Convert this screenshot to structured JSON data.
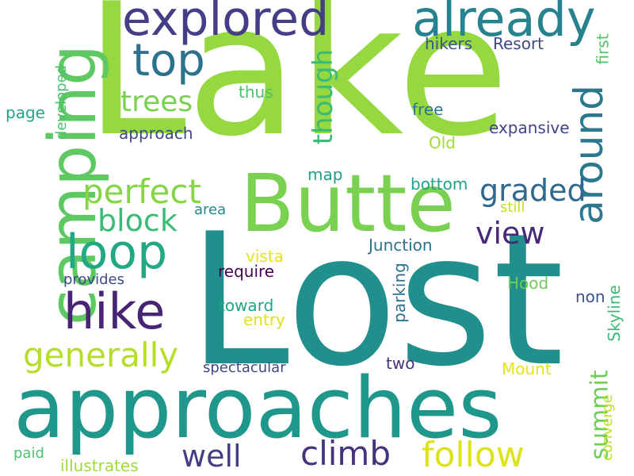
{
  "word_cloud": {
    "words": [
      {
        "id": "lake",
        "text": "Lake",
        "color": "#95d840"
      },
      {
        "id": "lost",
        "text": "Lost",
        "color": "#21908c"
      },
      {
        "id": "approaches",
        "text": "approaches",
        "color": "#1f978b"
      },
      {
        "id": "butte",
        "text": "Butte",
        "color": "#7ad151"
      },
      {
        "id": "camping",
        "text": "camping",
        "color": "#5ec962"
      },
      {
        "id": "explored",
        "text": "explored",
        "color": "#433e85"
      },
      {
        "id": "already",
        "text": "already",
        "color": "#26828e"
      },
      {
        "id": "top",
        "text": "top",
        "color": "#2c728e"
      },
      {
        "id": "around",
        "text": "around",
        "color": "#2a788e"
      },
      {
        "id": "loop",
        "text": "loop",
        "color": "#22a884"
      },
      {
        "id": "hike",
        "text": "hike",
        "color": "#482475"
      },
      {
        "id": "perfect",
        "text": "perfect",
        "color": "#86d549"
      },
      {
        "id": "trees",
        "text": "trees",
        "color": "#7ad151"
      },
      {
        "id": "though",
        "text": "though",
        "color": "#3bbb75"
      },
      {
        "id": "graded",
        "text": "graded",
        "color": "#31688e"
      },
      {
        "id": "view",
        "text": "view",
        "color": "#482878"
      },
      {
        "id": "block",
        "text": "block",
        "color": "#3bbb75"
      },
      {
        "id": "generally",
        "text": "generally",
        "color": "#b5de2b"
      },
      {
        "id": "well",
        "text": "well",
        "color": "#433e85"
      },
      {
        "id": "climb",
        "text": "climb",
        "color": "#46337e"
      },
      {
        "id": "follow",
        "text": "follow",
        "color": "#dde318"
      },
      {
        "id": "summit",
        "text": "summit",
        "color": "#6ece58"
      },
      {
        "id": "hikers",
        "text": "hikers",
        "color": "#3b528b"
      },
      {
        "id": "resort",
        "text": "Resort",
        "color": "#3e4989"
      },
      {
        "id": "first",
        "text": "first",
        "color": "#52c569"
      },
      {
        "id": "thus",
        "text": "thus",
        "color": "#4ac16d"
      },
      {
        "id": "free",
        "text": "free",
        "color": "#2a788e"
      },
      {
        "id": "page",
        "text": "page",
        "color": "#20a486"
      },
      {
        "id": "developed",
        "text": "developed",
        "color": "#4ac16d"
      },
      {
        "id": "approach",
        "text": "approach",
        "color": "#3e4989"
      },
      {
        "id": "expansive",
        "text": "expansive",
        "color": "#414487"
      },
      {
        "id": "old",
        "text": "Old",
        "color": "#a0da39"
      },
      {
        "id": "map",
        "text": "map",
        "color": "#1fa088"
      },
      {
        "id": "bottom",
        "text": "bottom",
        "color": "#1fa088"
      },
      {
        "id": "area",
        "text": "area",
        "color": "#23888e"
      },
      {
        "id": "still",
        "text": "still",
        "color": "#c8e020"
      },
      {
        "id": "vista",
        "text": "vista",
        "color": "#e5e419"
      },
      {
        "id": "junction",
        "text": "Junction",
        "color": "#2c728e"
      },
      {
        "id": "provides",
        "text": "provides",
        "color": "#3e4989"
      },
      {
        "id": "require",
        "text": "require",
        "color": "#440154"
      },
      {
        "id": "parking",
        "text": "parking",
        "color": "#2c728e"
      },
      {
        "id": "hood",
        "text": "Hood",
        "color": "#6ece58"
      },
      {
        "id": "skyline",
        "text": "Skyline",
        "color": "#3bbb75"
      },
      {
        "id": "non",
        "text": "non",
        "color": "#3b528b"
      },
      {
        "id": "toward",
        "text": "toward",
        "color": "#20a486"
      },
      {
        "id": "entry",
        "text": "entry",
        "color": "#dde318"
      },
      {
        "id": "two",
        "text": "two",
        "color": "#46337e"
      },
      {
        "id": "spectacular",
        "text": "spectacular",
        "color": "#3e4989"
      },
      {
        "id": "mount",
        "text": "Mount",
        "color": "#e5e419"
      },
      {
        "id": "converge",
        "text": "converge",
        "color": "#c2df23"
      },
      {
        "id": "paid",
        "text": "paid",
        "color": "#4ac16d"
      },
      {
        "id": "illustrates",
        "text": "illustrates",
        "color": "#9fda3a"
      }
    ]
  }
}
